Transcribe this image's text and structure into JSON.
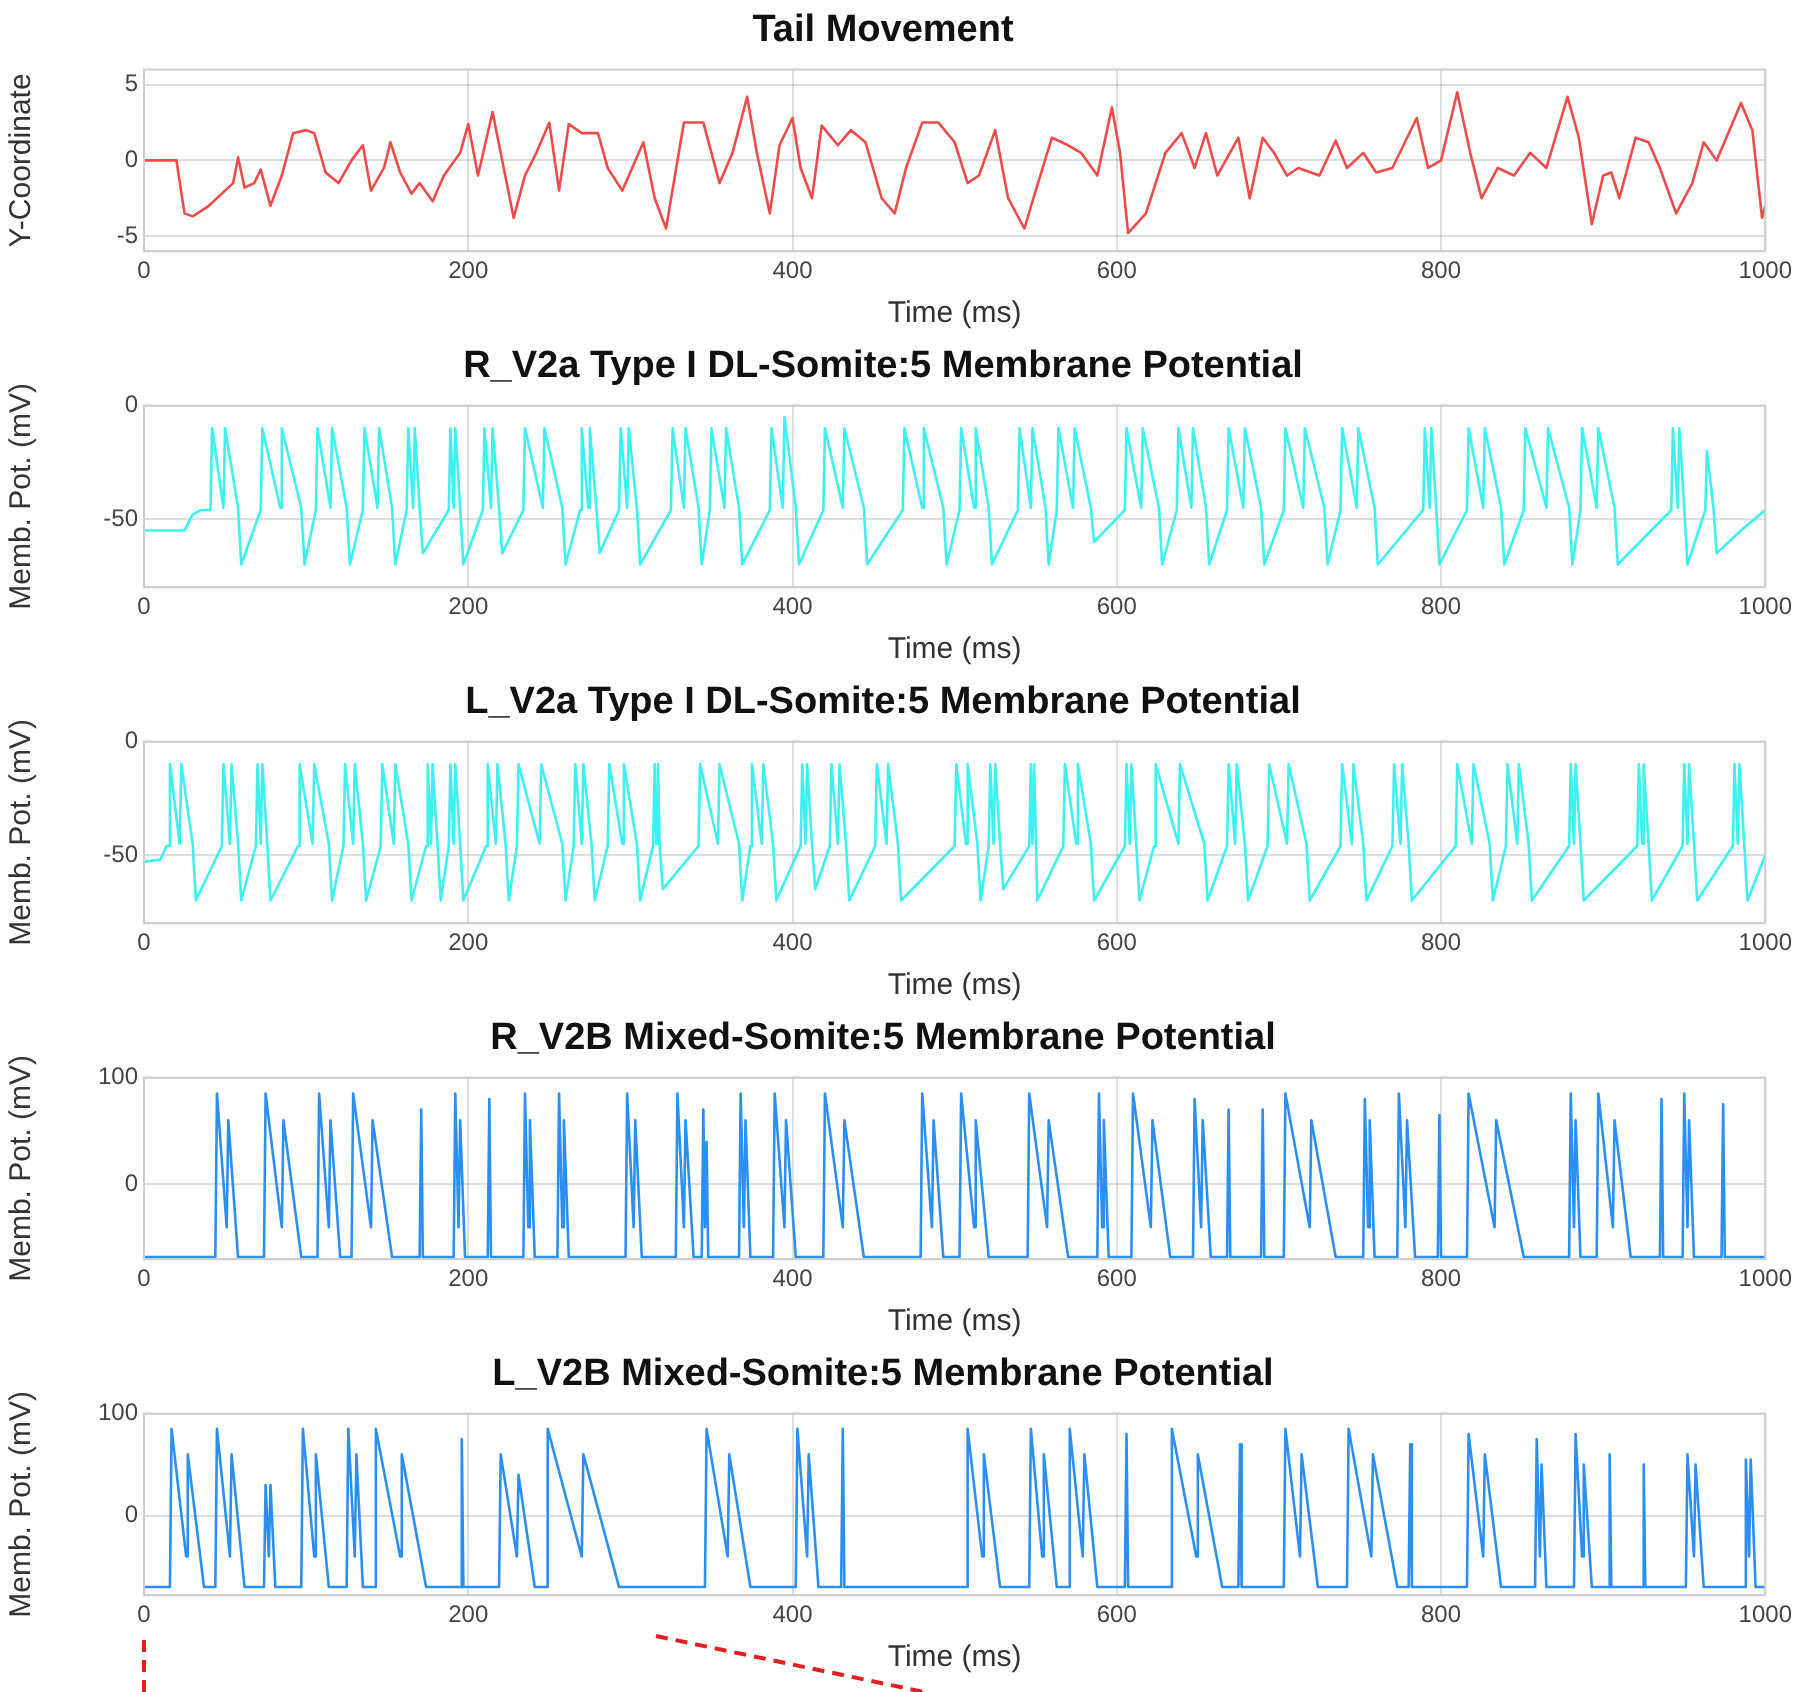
{
  "chart_data": [
    {
      "type": "line",
      "title": "Tail Movement",
      "xlabel": "Time (ms)",
      "ylabel": "Y-Coordinate",
      "xlim": [
        0,
        1000
      ],
      "xticks": [
        0,
        200,
        400,
        600,
        800,
        1000
      ],
      "ylim": [
        -6,
        6
      ],
      "yticks": [
        -5,
        0,
        5
      ],
      "grid": true,
      "x": [
        0,
        20,
        25,
        30,
        40,
        50,
        55,
        58,
        62,
        68,
        72,
        78,
        85,
        92,
        100,
        105,
        112,
        120,
        128,
        135,
        140,
        148,
        152,
        158,
        165,
        170,
        178,
        185,
        195,
        200,
        206,
        215,
        220,
        228,
        235,
        242,
        250,
        256,
        262,
        270,
        280,
        286,
        295,
        308,
        315,
        322,
        333,
        345,
        355,
        363,
        372,
        378,
        386,
        392,
        400,
        405,
        412,
        418,
        428,
        436,
        445,
        455,
        463,
        470,
        480,
        490,
        500,
        508,
        515,
        525,
        533,
        543,
        550,
        560,
        570,
        578,
        588,
        597,
        602,
        607,
        618,
        630,
        640,
        648,
        655,
        662,
        675,
        682,
        690,
        697,
        705,
        712,
        725,
        735,
        742,
        752,
        760,
        770,
        785,
        792,
        800,
        810,
        818,
        825,
        835,
        845,
        855,
        865,
        878,
        885,
        893,
        900,
        905,
        910,
        920,
        928,
        935,
        945,
        955,
        962,
        970,
        985,
        992,
        998,
        1000
      ],
      "series": [
        {
          "color": "#ee4b4b",
          "values": [
            0,
            0,
            -3.5,
            -3.7,
            -3,
            -2,
            -1.5,
            0.2,
            -1.8,
            -1.5,
            -0.6,
            -3,
            -1,
            1.8,
            2,
            1.8,
            -0.8,
            -1.5,
            0,
            1,
            -2,
            -0.5,
            1.2,
            -0.8,
            -2.2,
            -1.5,
            -2.7,
            -1,
            0.5,
            2.4,
            -1,
            3.2,
            0.5,
            -3.8,
            -1,
            0.5,
            2.5,
            -2,
            2.4,
            1.8,
            1.8,
            -0.5,
            -2,
            1.2,
            -2.5,
            -4.5,
            2.5,
            2.5,
            -1.5,
            0.5,
            4.2,
            0.5,
            -3.5,
            1,
            2.8,
            -0.5,
            -2.5,
            2.3,
            1,
            2,
            1.2,
            -2.5,
            -3.5,
            -0.5,
            2.5,
            2.5,
            1.2,
            -1.5,
            -1,
            2,
            -2.5,
            -4.5,
            -2,
            1.5,
            1,
            0.5,
            -1,
            3.5,
            0.5,
            -4.8,
            -3.5,
            0.5,
            1.8,
            -0.5,
            1.8,
            -1,
            1.5,
            -2.5,
            1.5,
            0.5,
            -1,
            -0.5,
            -1,
            1.3,
            -0.5,
            0.5,
            -0.8,
            -0.5,
            2.8,
            -0.5,
            0,
            4.5,
            0.5,
            -2.5,
            -0.5,
            -1,
            0.5,
            -0.5,
            4.2,
            1.5,
            -4.2,
            -1,
            -0.8,
            -2.5,
            1.5,
            1.2,
            -0.5,
            -3.5,
            -1.5,
            1.2,
            0,
            3.8,
            2,
            -3.8,
            -3
          ]
        }
      ]
    },
    {
      "type": "line",
      "title": "R_V2a Type I DL-Somite:5 Membrane Potential",
      "xlabel": "Time (ms)",
      "ylabel": "Memb. Pot. (mV)",
      "xlim": [
        0,
        1000
      ],
      "xticks": [
        0,
        200,
        400,
        600,
        800,
        1000
      ],
      "ylim": [
        -80,
        0
      ],
      "yticks": [
        -50,
        0
      ],
      "grid": true,
      "x": [
        0,
        25,
        30,
        35,
        41,
        42,
        49,
        50,
        58,
        60,
        72,
        73,
        84,
        85,
        97,
        99,
        106,
        107,
        115,
        116,
        125,
        127,
        135,
        136,
        144,
        145,
        153,
        155,
        162,
        163,
        166,
        167,
        170,
        172,
        188,
        189,
        191,
        192,
        195,
        197,
        209,
        210,
        214,
        215,
        219,
        221,
        234,
        235,
        246,
        247,
        258,
        260,
        269,
        270,
        274,
        275,
        279,
        281,
        293,
        294,
        298,
        299,
        304,
        306,
        325,
        326,
        333,
        334,
        342,
        344,
        349,
        350,
        358,
        359,
        367,
        369,
        386,
        387,
        394,
        395,
        402,
        404,
        419,
        420,
        431,
        432,
        444,
        446,
        468,
        469,
        480,
        481,
        493,
        495,
        503,
        504,
        512,
        513,
        521,
        523,
        539,
        540,
        547,
        548,
        556,
        558,
        563,
        564,
        573,
        574,
        584,
        586,
        605,
        606,
        615,
        616,
        626,
        628,
        637,
        638,
        646,
        647,
        655,
        657,
        668,
        669,
        678,
        679,
        689,
        691,
        703,
        704,
        715,
        716,
        728,
        730,
        738,
        739,
        748,
        749,
        759,
        761,
        789,
        790,
        793,
        794,
        797,
        799,
        816,
        817,
        826,
        827,
        837,
        839,
        851,
        852,
        865,
        866,
        879,
        881,
        886,
        887,
        896,
        897,
        907,
        909,
        942,
        943,
        946,
        947,
        950,
        952,
        963,
        964,
        968,
        970,
        985,
        1000
      ],
      "series": [
        {
          "color": "#3ff0f0",
          "values": [
            -55,
            -55,
            -48,
            -46,
            -46,
            -10,
            -45,
            -10,
            -45,
            -70,
            -46,
            -10,
            -45,
            -10,
            -45,
            -70,
            -46,
            -10,
            -45,
            -10,
            -45,
            -70,
            -46,
            -10,
            -45,
            -10,
            -45,
            -70,
            -46,
            -10,
            -45,
            -10,
            -45,
            -65,
            -46,
            -10,
            -45,
            -10,
            -45,
            -70,
            -46,
            -10,
            -45,
            -10,
            -45,
            -65,
            -46,
            -10,
            -45,
            -10,
            -45,
            -70,
            -46,
            -10,
            -45,
            -10,
            -45,
            -65,
            -46,
            -10,
            -45,
            -10,
            -45,
            -70,
            -46,
            -10,
            -45,
            -10,
            -45,
            -70,
            -46,
            -10,
            -45,
            -10,
            -45,
            -70,
            -46,
            -10,
            -45,
            -5,
            -45,
            -70,
            -46,
            -10,
            -45,
            -10,
            -45,
            -70,
            -46,
            -10,
            -45,
            -10,
            -45,
            -70,
            -46,
            -10,
            -45,
            -10,
            -45,
            -70,
            -46,
            -10,
            -45,
            -10,
            -45,
            -70,
            -46,
            -10,
            -45,
            -10,
            -45,
            -60,
            -46,
            -10,
            -45,
            -10,
            -45,
            -70,
            -46,
            -10,
            -45,
            -10,
            -45,
            -70,
            -46,
            -10,
            -45,
            -10,
            -45,
            -70,
            -46,
            -10,
            -45,
            -10,
            -45,
            -70,
            -46,
            -10,
            -45,
            -10,
            -45,
            -70,
            -46,
            -10,
            -45,
            -10,
            -45,
            -70,
            -46,
            -10,
            -45,
            -10,
            -45,
            -70,
            -46,
            -10,
            -45,
            -10,
            -45,
            -70,
            -46,
            -10,
            -45,
            -10,
            -45,
            -70,
            -46,
            -10,
            -45,
            -10,
            -45,
            -70,
            -46,
            -20,
            -45,
            -65,
            -55,
            -46
          ]
        }
      ]
    },
    {
      "type": "line",
      "title": "L_V2a Type I DL-Somite:5 Membrane Potential",
      "xlabel": "Time (ms)",
      "ylabel": "Memb. Pot. (mV)",
      "xlim": [
        0,
        1000
      ],
      "xticks": [
        0,
        200,
        400,
        600,
        800,
        1000
      ],
      "ylim": [
        -80,
        0
      ],
      "yticks": [
        -50,
        0
      ],
      "grid": true,
      "x": [
        0,
        10,
        14,
        15,
        16,
        22,
        23,
        30,
        32,
        48,
        49,
        53,
        54,
        58,
        60,
        69,
        70,
        72,
        73,
        76,
        78,
        95,
        96,
        104,
        105,
        114,
        116,
        123,
        124,
        129,
        130,
        135,
        137,
        146,
        147,
        154,
        155,
        163,
        165,
        174,
        175,
        177,
        178,
        181,
        183,
        188,
        189,
        191,
        192,
        195,
        197,
        211,
        212,
        217,
        218,
        223,
        225,
        230,
        231,
        244,
        245,
        258,
        260,
        265,
        266,
        270,
        271,
        276,
        278,
        286,
        287,
        295,
        296,
        304,
        306,
        314,
        315,
        316,
        317,
        318,
        320,
        342,
        343,
        354,
        355,
        367,
        369,
        374,
        375,
        381,
        382,
        388,
        390,
        405,
        406,
        408,
        409,
        412,
        414,
        423,
        424,
        428,
        429,
        433,
        435,
        451,
        452,
        458,
        459,
        465,
        467,
        500,
        501,
        507,
        508,
        514,
        516,
        521,
        522,
        524,
        525,
        528,
        530,
        546,
        547,
        548,
        549,
        551,
        567,
        568,
        575,
        576,
        584,
        586,
        605,
        606,
        608,
        609,
        612,
        614,
        623,
        624,
        638,
        639,
        654,
        656,
        668,
        669,
        673,
        674,
        679,
        681,
        693,
        694,
        705,
        706,
        717,
        719,
        738,
        739,
        745,
        746,
        752,
        754,
        770,
        771,
        775,
        776,
        780,
        782,
        809,
        810,
        819,
        820,
        830,
        832,
        840,
        841,
        847,
        848,
        854,
        856,
        879,
        880,
        882,
        883,
        886,
        888,
        921,
        922,
        924,
        925,
        928,
        930,
        949,
        950,
        952,
        953,
        956,
        958,
        980,
        981,
        983,
        984,
        987,
        989,
        1000
      ],
      "series": [
        {
          "color": "#3ff0f0",
          "values": [
            -53,
            -52,
            -46,
            -46,
            -10,
            -45,
            -10,
            -45,
            -70,
            -46,
            -10,
            -45,
            -10,
            -45,
            -70,
            -46,
            -10,
            -45,
            -10,
            -45,
            -70,
            -46,
            -10,
            -45,
            -10,
            -45,
            -70,
            -46,
            -10,
            -45,
            -10,
            -45,
            -70,
            -46,
            -10,
            -45,
            -10,
            -45,
            -70,
            -46,
            -10,
            -45,
            -10,
            -45,
            -70,
            -46,
            -10,
            -45,
            -10,
            -45,
            -70,
            -46,
            -10,
            -45,
            -10,
            -45,
            -70,
            -46,
            -10,
            -45,
            -10,
            -45,
            -70,
            -46,
            -10,
            -45,
            -10,
            -45,
            -70,
            -46,
            -10,
            -45,
            -10,
            -45,
            -70,
            -46,
            -10,
            -45,
            -10,
            -45,
            -65,
            -46,
            -10,
            -45,
            -10,
            -45,
            -70,
            -46,
            -10,
            -45,
            -10,
            -45,
            -70,
            -46,
            -10,
            -45,
            -10,
            -45,
            -65,
            -46,
            -10,
            -45,
            -10,
            -45,
            -70,
            -46,
            -10,
            -45,
            -10,
            -45,
            -70,
            -46,
            -10,
            -45,
            -10,
            -45,
            -70,
            -46,
            -10,
            -45,
            -10,
            -45,
            -65,
            -46,
            -10,
            -45,
            -10,
            -70,
            -46,
            -10,
            -45,
            -10,
            -45,
            -70,
            -46,
            -10,
            -45,
            -10,
            -45,
            -70,
            -46,
            -10,
            -45,
            -10,
            -45,
            -70,
            -46,
            -10,
            -45,
            -10,
            -45,
            -70,
            -46,
            -10,
            -45,
            -10,
            -45,
            -70,
            -46,
            -10,
            -45,
            -10,
            -45,
            -70,
            -46,
            -10,
            -45,
            -10,
            -45,
            -70,
            -46,
            -10,
            -45,
            -10,
            -45,
            -70,
            -46,
            -10,
            -45,
            -10,
            -45,
            -70,
            -46,
            -10,
            -45,
            -10,
            -45,
            -70,
            -46,
            -10,
            -45,
            -10,
            -45,
            -70,
            -46,
            -10,
            -45,
            -10,
            -45,
            -70,
            -46,
            -10,
            -45,
            -10,
            -45,
            -70,
            -50
          ]
        }
      ]
    },
    {
      "type": "line",
      "title": "R_V2B Mixed-Somite:5 Membrane Potential",
      "xlabel": "Time (ms)",
      "ylabel": "Memb. Pot. (mV)",
      "xlim": [
        0,
        1000
      ],
      "xticks": [
        0,
        200,
        400,
        600,
        800,
        1000
      ],
      "ylim": [
        -70,
        100
      ],
      "yticks": [
        0,
        100
      ],
      "grid": true,
      "x": [
        0,
        44,
        45,
        51,
        52,
        58,
        74,
        75,
        85,
        86,
        97,
        107,
        108,
        114,
        115,
        121,
        128,
        129,
        140,
        141,
        153,
        170,
        171,
        172,
        191,
        192,
        194,
        195,
        198,
        212,
        213,
        214,
        234,
        235,
        237,
        238,
        241,
        255,
        256,
        258,
        259,
        262,
        297,
        298,
        302,
        303,
        307,
        328,
        329,
        333,
        334,
        339,
        344,
        345,
        346,
        347,
        348,
        367,
        368,
        370,
        371,
        374,
        388,
        389,
        395,
        396,
        402,
        419,
        420,
        431,
        432,
        444,
        479,
        480,
        486,
        487,
        493,
        503,
        504,
        512,
        513,
        521,
        545,
        546,
        557,
        558,
        570,
        588,
        589,
        591,
        592,
        595,
        609,
        610,
        621,
        622,
        633,
        647,
        648,
        652,
        653,
        658,
        668,
        669,
        670,
        689,
        690,
        691,
        703,
        704,
        719,
        720,
        735,
        752,
        753,
        755,
        756,
        759,
        773,
        774,
        778,
        779,
        784,
        798,
        799,
        800,
        816,
        817,
        833,
        834,
        851,
        879,
        880,
        882,
        883,
        886,
        896,
        897,
        906,
        907,
        917,
        935,
        936,
        937,
        949,
        950,
        952,
        953,
        956,
        973,
        974,
        975,
        1000
      ],
      "series": [
        {
          "color": "#2b8ff0",
          "values": [
            -68,
            -68,
            85,
            -40,
            60,
            -68,
            -68,
            85,
            -40,
            60,
            -68,
            -68,
            85,
            -40,
            60,
            -68,
            -68,
            85,
            -40,
            60,
            -68,
            -68,
            70,
            -68,
            -68,
            85,
            -40,
            60,
            -68,
            -68,
            80,
            -68,
            -68,
            85,
            -40,
            60,
            -68,
            -68,
            85,
            -40,
            60,
            -68,
            -68,
            85,
            -40,
            60,
            -68,
            -68,
            85,
            -40,
            60,
            -68,
            -68,
            70,
            -40,
            40,
            -68,
            -68,
            85,
            -40,
            60,
            -68,
            -68,
            85,
            -40,
            60,
            -68,
            -68,
            85,
            -40,
            60,
            -68,
            -68,
            85,
            -40,
            60,
            -68,
            -68,
            85,
            -40,
            60,
            -68,
            -68,
            85,
            -40,
            60,
            -68,
            -68,
            85,
            -40,
            60,
            -68,
            -68,
            85,
            -40,
            60,
            -68,
            -68,
            80,
            -40,
            60,
            -68,
            -68,
            70,
            -68,
            -68,
            70,
            -68,
            -68,
            85,
            -40,
            60,
            -68,
            -68,
            80,
            -40,
            60,
            -68,
            -68,
            85,
            -40,
            60,
            -68,
            -68,
            65,
            -68,
            -68,
            85,
            -40,
            60,
            -68,
            -68,
            85,
            -40,
            60,
            -68,
            -68,
            85,
            -40,
            60,
            -68,
            -68,
            80,
            -68,
            -68,
            85,
            -40,
            60,
            -68,
            -68,
            75,
            -68,
            -68
          ]
        }
      ]
    },
    {
      "type": "line",
      "title": "L_V2B Mixed-Somite:5 Membrane Potential",
      "xlabel": "Time (ms)",
      "ylabel": "Memb. Pot. (mV)",
      "xlim": [
        0,
        1000
      ],
      "xticks": [
        0,
        200,
        400,
        600,
        800,
        1000
      ],
      "ylim": [
        -78,
        100
      ],
      "yticks": [
        0,
        100
      ],
      "grid": true,
      "x": [
        0,
        16,
        17,
        26,
        27,
        37,
        44,
        45,
        53,
        54,
        62,
        74,
        75,
        77,
        78,
        81,
        97,
        98,
        105,
        106,
        114,
        125,
        126,
        130,
        131,
        135,
        142,
        143,
        158,
        159,
        174,
        195,
        196,
        197,
        219,
        220,
        230,
        231,
        241,
        248,
        249,
        270,
        271,
        293,
        346,
        347,
        360,
        361,
        374,
        402,
        403,
        409,
        410,
        416,
        430,
        431,
        432,
        507,
        508,
        517,
        518,
        528,
        546,
        547,
        554,
        555,
        563,
        570,
        571,
        579,
        580,
        588,
        605,
        606,
        607,
        633,
        634,
        649,
        650,
        665,
        675,
        676,
        677,
        703,
        704,
        713,
        714,
        724,
        742,
        743,
        757,
        758,
        773,
        780,
        781,
        782,
        816,
        817,
        826,
        827,
        837,
        858,
        859,
        861,
        862,
        865,
        882,
        883,
        887,
        888,
        893,
        903,
        904,
        905,
        924,
        925,
        926,
        951,
        952,
        956,
        957,
        962,
        987,
        988,
        990,
        991,
        994,
        1000
      ],
      "series": [
        {
          "color": "#2b8ff0",
          "values": [
            -70,
            -70,
            85,
            -40,
            60,
            -70,
            -70,
            85,
            -40,
            60,
            -70,
            -70,
            30,
            -40,
            30,
            -70,
            -70,
            85,
            -40,
            60,
            -70,
            -70,
            85,
            -40,
            60,
            -70,
            -70,
            85,
            -40,
            60,
            -70,
            -70,
            75,
            -70,
            -70,
            60,
            -40,
            40,
            -70,
            -70,
            85,
            -40,
            60,
            -70,
            -70,
            85,
            -40,
            60,
            -70,
            -70,
            85,
            -40,
            60,
            -70,
            -70,
            85,
            -70,
            -70,
            85,
            -40,
            60,
            -70,
            -70,
            85,
            -40,
            60,
            -70,
            -70,
            85,
            -40,
            60,
            -70,
            -70,
            80,
            -70,
            -70,
            85,
            -40,
            60,
            -70,
            -70,
            70,
            -70,
            -70,
            85,
            -40,
            60,
            -70,
            -70,
            85,
            -40,
            60,
            -70,
            -70,
            70,
            -70,
            -70,
            80,
            -40,
            60,
            -70,
            -70,
            75,
            -40,
            50,
            -70,
            -70,
            80,
            -40,
            50,
            -70,
            -70,
            60,
            -70,
            -70,
            50,
            -70,
            -70,
            60,
            -40,
            50,
            -70,
            -70,
            55,
            -40,
            55,
            -70,
            -70
          ]
        }
      ]
    }
  ]
}
